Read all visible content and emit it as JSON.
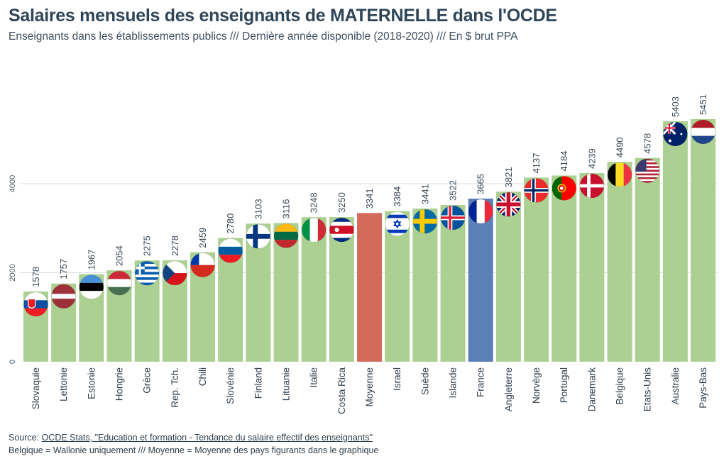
{
  "header": {
    "title": "Salaires mensuels des enseignants de MATERNELLE dans l'OCDE",
    "subtitle": "Enseignants dans les établissements publics /// Dernière année disponible (2018-2020) /// En $ brut PPA"
  },
  "footer": {
    "source_prefix": "Source: ",
    "source_link": "OCDE Stats, \"Education et formation - Tendance du salaire effectif des enseignants\"",
    "note": "Belgique = Wallonie uniquement /// Moyenne = Moyenne des pays figurants dans le graphique"
  },
  "colors": {
    "default_bar": "#abd092",
    "average_bar": "#d46a5a",
    "france_bar": "#5a80b6",
    "grid": "#dddddd"
  },
  "chart_data": {
    "type": "bar",
    "title": "Salaires mensuels des enseignants de MATERNELLE dans l'OCDE",
    "xlabel": "",
    "ylabel": "",
    "ylim": [
      0,
      5600
    ],
    "yticks": [
      0,
      2000,
      4000
    ],
    "grid": true,
    "categories": [
      "Slovaquie",
      "Lettonie",
      "Estonie",
      "Hongrie",
      "Grèce",
      "Rep. Tch.",
      "Chili",
      "Slovénie",
      "Finland",
      "Lituanie",
      "Italie",
      "Costa Rica",
      "Moyenne",
      "Israel",
      "Suède",
      "Islande",
      "France",
      "Angleterre",
      "Norvège",
      "Portugal",
      "Danemark",
      "Belgique",
      "Etats-Unis",
      "Australie",
      "Pays-Bas"
    ],
    "values": [
      1578,
      1757,
      1967,
      2054,
      2275,
      2278,
      2459,
      2780,
      3103,
      3116,
      3248,
      3250,
      3341,
      3384,
      3441,
      3522,
      3665,
      3821,
      4137,
      4184,
      4239,
      4490,
      4578,
      5403,
      5451
    ],
    "highlight": {
      "Moyenne": "average_bar",
      "France": "france_bar"
    },
    "flags": [
      "slovakia",
      "latvia",
      "estonia",
      "hungary",
      "greece",
      "czechia",
      "chile",
      "slovenia",
      "finland",
      "lithuania",
      "italy",
      "costa-rica",
      "",
      "israel",
      "sweden",
      "iceland",
      "france",
      "uk",
      "norway",
      "portugal",
      "denmark",
      "belgium",
      "usa",
      "australia",
      "netherlands"
    ]
  }
}
